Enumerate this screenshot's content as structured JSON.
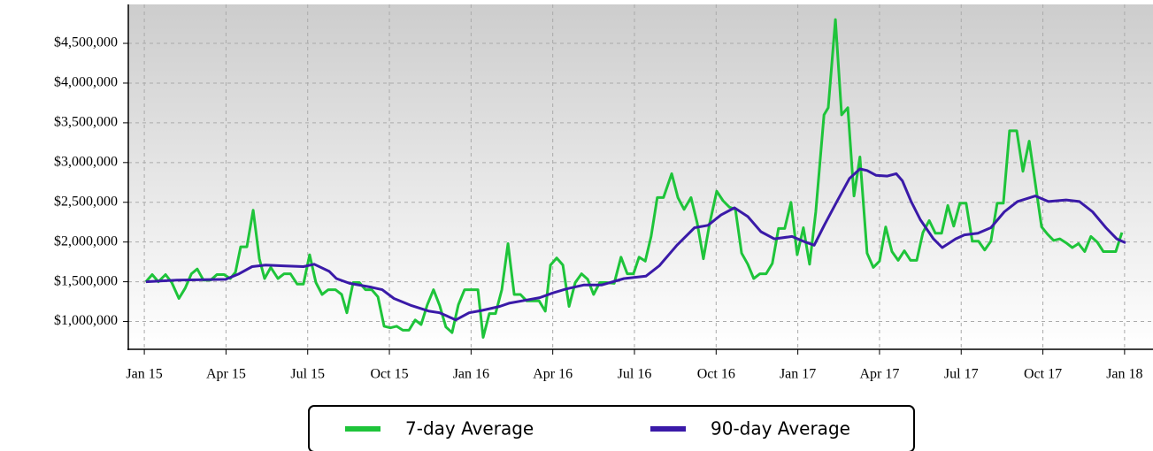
{
  "chart_data": {
    "type": "line",
    "xlim": [
      2014.951,
      2018.087
    ],
    "xticks": [
      {
        "value": 2015,
        "label": "Jan 15"
      },
      {
        "value": 2015.25,
        "label": "Apr 15"
      },
      {
        "value": 2015.5,
        "label": "Jul 15"
      },
      {
        "value": 2015.75,
        "label": "Oct 15"
      },
      {
        "value": 2016,
        "label": "Jan 16"
      },
      {
        "value": 2016.25,
        "label": "Apr 16"
      },
      {
        "value": 2016.5,
        "label": "Jul 16"
      },
      {
        "value": 2016.75,
        "label": "Oct 16"
      },
      {
        "value": 2017,
        "label": "Jan 17"
      },
      {
        "value": 2017.25,
        "label": "Apr 17"
      },
      {
        "value": 2017.5,
        "label": "Jul 17"
      },
      {
        "value": 2017.75,
        "label": "Oct 17"
      },
      {
        "value": 2018,
        "label": "Jan 18"
      }
    ],
    "ylim": [
      650000,
      4990000
    ],
    "yticks": [
      {
        "value": 1000000,
        "label": "$1,000,000"
      },
      {
        "value": 1500000,
        "label": "$1,500,000"
      },
      {
        "value": 2000000,
        "label": "$2,000,000"
      },
      {
        "value": 2500000,
        "label": "$2,500,000"
      },
      {
        "value": 3000000,
        "label": "$3,000,000"
      },
      {
        "value": 3500000,
        "label": "$3,500,000"
      },
      {
        "value": 4000000,
        "label": "$4,000,000"
      },
      {
        "value": 4500000,
        "label": "$4,500,000"
      }
    ],
    "grid": true,
    "legend": "bottom",
    "series": [
      {
        "name": "7-day Average",
        "color": "#1ec43a",
        "x": [
          2015.005,
          2015.024,
          2015.043,
          2015.065,
          2015.084,
          2015.106,
          2015.125,
          2015.144,
          2015.162,
          2015.181,
          2015.203,
          2015.222,
          2015.244,
          2015.263,
          2015.279,
          2015.295,
          2015.314,
          2015.333,
          2015.352,
          2015.368,
          2015.387,
          2015.409,
          2015.428,
          2015.447,
          2015.468,
          2015.487,
          2015.506,
          2015.525,
          2015.544,
          2015.563,
          2015.585,
          2015.604,
          2015.62,
          2015.639,
          2015.658,
          2015.677,
          2015.696,
          2015.715,
          2015.734,
          2015.753,
          2015.772,
          2015.791,
          2015.81,
          2015.829,
          2015.847,
          2015.866,
          2015.885,
          2015.904,
          2015.923,
          2015.942,
          2015.961,
          2015.98,
          2015.999,
          2016.021,
          2016.037,
          2016.056,
          2016.075,
          2016.094,
          2016.113,
          2016.132,
          2016.151,
          2016.17,
          2016.189,
          2016.208,
          2016.227,
          2016.243,
          2016.262,
          2016.281,
          2016.3,
          2016.319,
          2016.338,
          2016.357,
          2016.375,
          2016.394,
          2016.413,
          2016.438,
          2016.459,
          2016.478,
          2016.497,
          2016.514,
          2016.533,
          2016.551,
          2016.57,
          2016.589,
          2016.614,
          2016.633,
          2016.652,
          2016.673,
          2016.692,
          2016.711,
          2016.73,
          2016.752,
          2016.771,
          2016.79,
          2016.809,
          2016.828,
          2016.847,
          2016.865,
          2016.884,
          2016.903,
          2016.922,
          2016.941,
          2016.96,
          2016.979,
          2016.998,
          2017.017,
          2017.036,
          2017.055,
          2017.08,
          2017.093,
          2017.115,
          2017.134,
          2017.153,
          2017.172,
          2017.19,
          2017.212,
          2017.231,
          2017.25,
          2017.269,
          2017.288,
          2017.307,
          2017.326,
          2017.345,
          2017.364,
          2017.383,
          2017.402,
          2017.421,
          2017.44,
          2017.459,
          2017.477,
          2017.496,
          2017.515,
          2017.534,
          2017.553,
          2017.572,
          2017.591,
          2017.61,
          2017.629,
          2017.648,
          2017.67,
          2017.689,
          2017.708,
          2017.727,
          2017.746,
          2017.764,
          2017.783,
          2017.802,
          2017.821,
          2017.84,
          2017.859,
          2017.878,
          2017.897,
          2017.916,
          2017.935,
          2017.954,
          2017.973,
          2017.992
        ],
        "values": [
          1500000,
          1590000,
          1500000,
          1590000,
          1490000,
          1290000,
          1420000,
          1600000,
          1660000,
          1520000,
          1520000,
          1590000,
          1590000,
          1540000,
          1620000,
          1940000,
          1940000,
          2400000,
          1790000,
          1540000,
          1680000,
          1540000,
          1600000,
          1600000,
          1470000,
          1470000,
          1840000,
          1490000,
          1340000,
          1400000,
          1400000,
          1340000,
          1110000,
          1490000,
          1490000,
          1400000,
          1400000,
          1310000,
          940000,
          920000,
          940000,
          890000,
          890000,
          1020000,
          960000,
          1210000,
          1400000,
          1200000,
          930000,
          860000,
          1210000,
          1400000,
          1400000,
          1400000,
          800000,
          1100000,
          1100000,
          1400000,
          1980000,
          1340000,
          1340000,
          1260000,
          1260000,
          1260000,
          1130000,
          1710000,
          1800000,
          1710000,
          1190000,
          1490000,
          1600000,
          1530000,
          1340000,
          1490000,
          1490000,
          1480000,
          1810000,
          1600000,
          1600000,
          1810000,
          1760000,
          2070000,
          2560000,
          2560000,
          2860000,
          2560000,
          2410000,
          2560000,
          2240000,
          1790000,
          2230000,
          2640000,
          2520000,
          2440000,
          2410000,
          1860000,
          1720000,
          1540000,
          1600000,
          1600000,
          1730000,
          2170000,
          2170000,
          2500000,
          1840000,
          2180000,
          1720000,
          2380000,
          3600000,
          3690000,
          4800000,
          3600000,
          3690000,
          2580000,
          3070000,
          1860000,
          1680000,
          1760000,
          2190000,
          1880000,
          1770000,
          1890000,
          1770000,
          1770000,
          2120000,
          2270000,
          2110000,
          2110000,
          2460000,
          2200000,
          2490000,
          2490000,
          2010000,
          2010000,
          1900000,
          2010000,
          2490000,
          2490000,
          3400000,
          3400000,
          2890000,
          3270000,
          2730000,
          2190000,
          2100000,
          2020000,
          2040000,
          1990000,
          1930000,
          1980000,
          1880000,
          2070000,
          2000000,
          1880000,
          1880000,
          1880000,
          2120000
        ]
      },
      {
        "name": "90-day Average",
        "color": "#3a1aa8",
        "x": [
          2015.005,
          2015.1,
          2015.249,
          2015.29,
          2015.33,
          2015.371,
          2015.425,
          2015.487,
          2015.52,
          2015.566,
          2015.588,
          2015.628,
          2015.696,
          2015.728,
          2015.764,
          2015.818,
          2015.872,
          2015.904,
          2015.926,
          2015.953,
          2015.994,
          2016.034,
          2016.088,
          2016.116,
          2016.17,
          2016.21,
          2016.251,
          2016.292,
          2016.346,
          2016.4,
          2016.468,
          2016.535,
          2016.576,
          2016.63,
          2016.684,
          2016.725,
          2016.765,
          2016.806,
          2016.847,
          2016.887,
          2016.928,
          2016.982,
          2017.023,
          2017.05,
          2017.082,
          2017.117,
          2017.158,
          2017.19,
          2017.212,
          2017.239,
          2017.274,
          2017.301,
          2017.32,
          2017.347,
          2017.375,
          2017.415,
          2017.442,
          2017.483,
          2017.51,
          2017.551,
          2017.591,
          2017.632,
          2017.672,
          2017.727,
          2017.767,
          2017.821,
          2017.862,
          2017.902,
          2017.943,
          2017.976,
          2018.003
        ],
        "values": [
          1500000,
          1520000,
          1530000,
          1600000,
          1690000,
          1710000,
          1700000,
          1690000,
          1720000,
          1630000,
          1540000,
          1480000,
          1430000,
          1400000,
          1290000,
          1200000,
          1130000,
          1110000,
          1070000,
          1020000,
          1110000,
          1140000,
          1190000,
          1230000,
          1270000,
          1300000,
          1360000,
          1410000,
          1460000,
          1460000,
          1540000,
          1570000,
          1700000,
          1960000,
          2180000,
          2210000,
          2340000,
          2430000,
          2320000,
          2130000,
          2040000,
          2070000,
          2000000,
          1960000,
          2220000,
          2490000,
          2800000,
          2920000,
          2900000,
          2840000,
          2830000,
          2860000,
          2770000,
          2510000,
          2280000,
          2040000,
          1930000,
          2040000,
          2090000,
          2110000,
          2180000,
          2380000,
          2510000,
          2580000,
          2510000,
          2530000,
          2510000,
          2380000,
          2180000,
          2040000,
          1990000
        ]
      }
    ]
  }
}
